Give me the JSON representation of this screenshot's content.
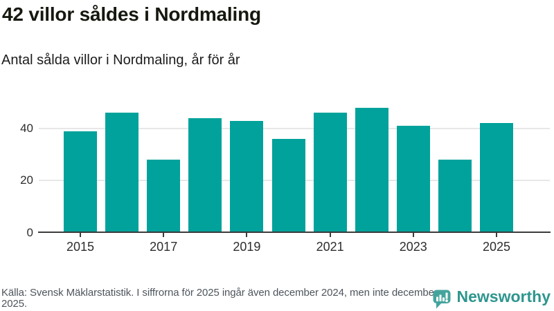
{
  "header": {
    "title": "42 villor såldes i Nordmaling",
    "subtitle": "Antal sålda villor i Nordmaling, år för år"
  },
  "chart_data": {
    "type": "bar",
    "title": "42 villor såldes i Nordmaling",
    "subtitle": "Antal sålda villor i Nordmaling, år för år",
    "categories": [
      "2015",
      "2016",
      "2017",
      "2018",
      "2019",
      "2020",
      "2021",
      "2022",
      "2023",
      "2024",
      "2025"
    ],
    "values": [
      39,
      46,
      28,
      44,
      43,
      36,
      46,
      48,
      41,
      28,
      42
    ],
    "xlabel": "",
    "ylabel": "",
    "ylim": [
      0,
      50
    ],
    "yticks": [
      0,
      20,
      40
    ],
    "xtick_labels": [
      "2015",
      "2017",
      "2019",
      "2021",
      "2023",
      "2025"
    ],
    "grid": true,
    "legend": false,
    "bar_color": "#00a29b",
    "axis_color": "#3b3b3b",
    "grid_color": "#e7e7e7",
    "tick_text_color": "#2d2d2d"
  },
  "footer": {
    "source": "Källa: Svensk Mäklarstatistik. I siffrorna för 2025 ingår även december 2024, men inte december 2025.",
    "brand": {
      "name": "Newsworthy",
      "icon": "newsworthy-chart-bubble-icon",
      "icon_color": "#43a49c",
      "wordmark_color": "#2e968e"
    }
  }
}
